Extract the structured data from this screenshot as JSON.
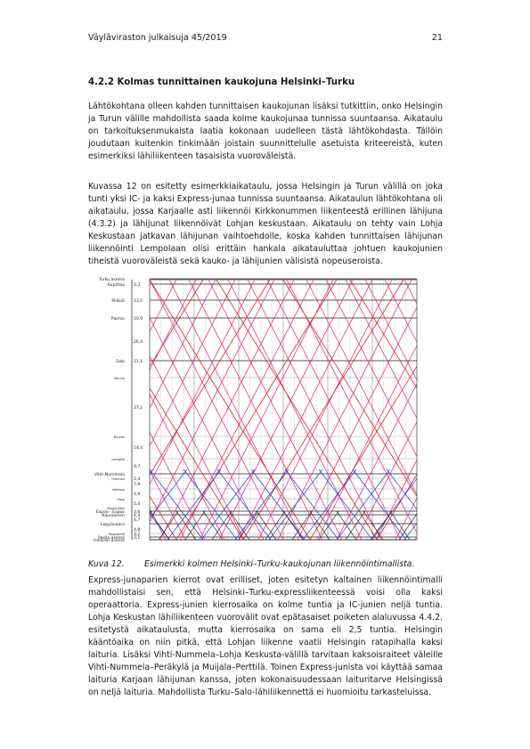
{
  "header": {
    "publication": "Väyläviraston julkaisuja 45/2019",
    "page_number": "21"
  },
  "section": {
    "heading": "4.2.2 Kolmas tunnittainen kaukojuna Helsinki–Turku"
  },
  "paragraphs": [
    "Lähtökohtana olleen kahden tunnittaisen kaukojunan lisäksi tutkittiin, onko Helsingin ja Turun välille mahdollista saada kolme kaukojunaa tunnissa suuntaansa. Aikataulu on tarkoituksenmukaista laatia kokonaan uudelleen tästä lähtökohdasta. Tällöin joudutaan kuitenkin tinkimään joistain suunnittelulle asetuista kriteereistä, kuten esimerkiksi lähiliikenteen tasaisista vuoroväleistä.",
    "Kuvassa 12 on esitetty esimerkkiaikataulu, jossa Helsingin ja Turun välillä on joka tunti yksi IC- ja kaksi Express-junaa tunnissa suuntaansa. Aikataulun lähtökohtana oli aikataulu, jossa Karjaalle asti liikennöi Kirkkonummen liikenteestä erillinen lähijuna (4.3.2) ja lähijunat liikennöivät Lohjan keskustaan. Aikataulu on tehty vain Lohja Keskustaan jatkavan lähijunan vaihtoehdolle, koska kahden tunnittaisen lähijunan liikennöinti Lempolaan olisi erittäin hankala aikatauluttaa johtuen kaukojunien tiheistä vuoroväleistä sekä kauko- ja lähijunien välisistä nopeuseroista.",
    "Express-junaparien kierrot ovat erilliset, joten esitetyn kaltainen liikennöintimalli mahdollistaisi sen, että Helsinki–Turku-expressliikenteessä voisi olla kaksi operaattoria. Express-junien kierrosaika on kolme tuntia ja IC-junien neljä tuntia. Lohja Keskustan lähiliikenteen vuorovälit ovat epätasaiset poiketen alaluvussa 4.4.2. esitetystä aikataulusta, mutta kierrosaika on sama eli 2,5 tuntia. Helsingin kääntöaika on niin pitkä, että Lohjan liikenne vaatii Helsingin ratapihalla kaksi laituria. Lisäksi Vihti-Nummela–Lohja Keskusta-välillä tarvitaan kaksoisraiteet väleille Vihti-Nummela–Peräkylä ja Muijala–Perttilä. Toinen Express-junista voi käyttää samaa laituria Karjaan lähijunan kanssa, joten kokonaisuudessaan laituritarve Helsingissä on neljä laituria. Mahdollista Turku–Salo-lähiliikennettä ei huomioitu tarkasteluissa."
  ],
  "figure": {
    "caption_number": "Kuva 12.",
    "caption_text": "Esimerkki kolmen Helsinki–Turku-kaukojunan liikennöintimallista.",
    "stations": [
      {
        "name": "Turku asema",
        "km": "",
        "major": true
      },
      {
        "name": "Kupittaa",
        "km": "3,3",
        "major": true
      },
      {
        "name": "Piikkiö",
        "km": "13,5",
        "major": true
      },
      {
        "name": "Paimio",
        "km": "10,9",
        "major": true
      },
      {
        "name": "",
        "km": "26,4",
        "major": false
      },
      {
        "name": "Salo",
        "km": "11,1",
        "major": true
      },
      {
        "name": "Muurla",
        "km": "",
        "major": false
      },
      {
        "name": "",
        "km": "37,2",
        "major": false
      },
      {
        "name": "Nummi",
        "km": "",
        "major": false
      },
      {
        "name": "",
        "km": "14,4",
        "major": false
      },
      {
        "name": "Lempola",
        "km": "",
        "major": false
      },
      {
        "name": "",
        "km": "9,7",
        "major": false
      },
      {
        "name": "Vihti-Nummela",
        "km": "",
        "major": true
      },
      {
        "name": "Huhmari",
        "km": "2,4",
        "major": false
      },
      {
        "name": "",
        "km": "7,9",
        "major": false
      },
      {
        "name": "Veikkola",
        "km": "",
        "major": false
      },
      {
        "name": "",
        "km": "4,9",
        "major": false
      },
      {
        "name": "Hista",
        "km": "",
        "major": false
      },
      {
        "name": "",
        "km": "5,4",
        "major": false
      },
      {
        "name": "Myntinmäki",
        "km": "",
        "major": false
      },
      {
        "name": "Espoo - Espoo",
        "km": "3,6",
        "major": true
      },
      {
        "name": "Kauniainen",
        "km": "4,4",
        "major": true
      },
      {
        "name": "",
        "km": "4,7",
        "major": false
      },
      {
        "name": "Leppävaara",
        "km": "",
        "major": true
      },
      {
        "name": "",
        "km": "4,8",
        "major": false
      },
      {
        "name": "Huopalahti",
        "km": "3,2",
        "major": false
      },
      {
        "name": "Pasila asema",
        "km": "3,1",
        "major": true
      },
      {
        "name": "Helsinki asema",
        "km": "",
        "major": true
      }
    ],
    "colors": {
      "express": "#e0207a",
      "intercity": "#d81818",
      "commuter": "#1f3fd6",
      "commuter_karjaa": "#111111",
      "grid": "#444444"
    }
  }
}
